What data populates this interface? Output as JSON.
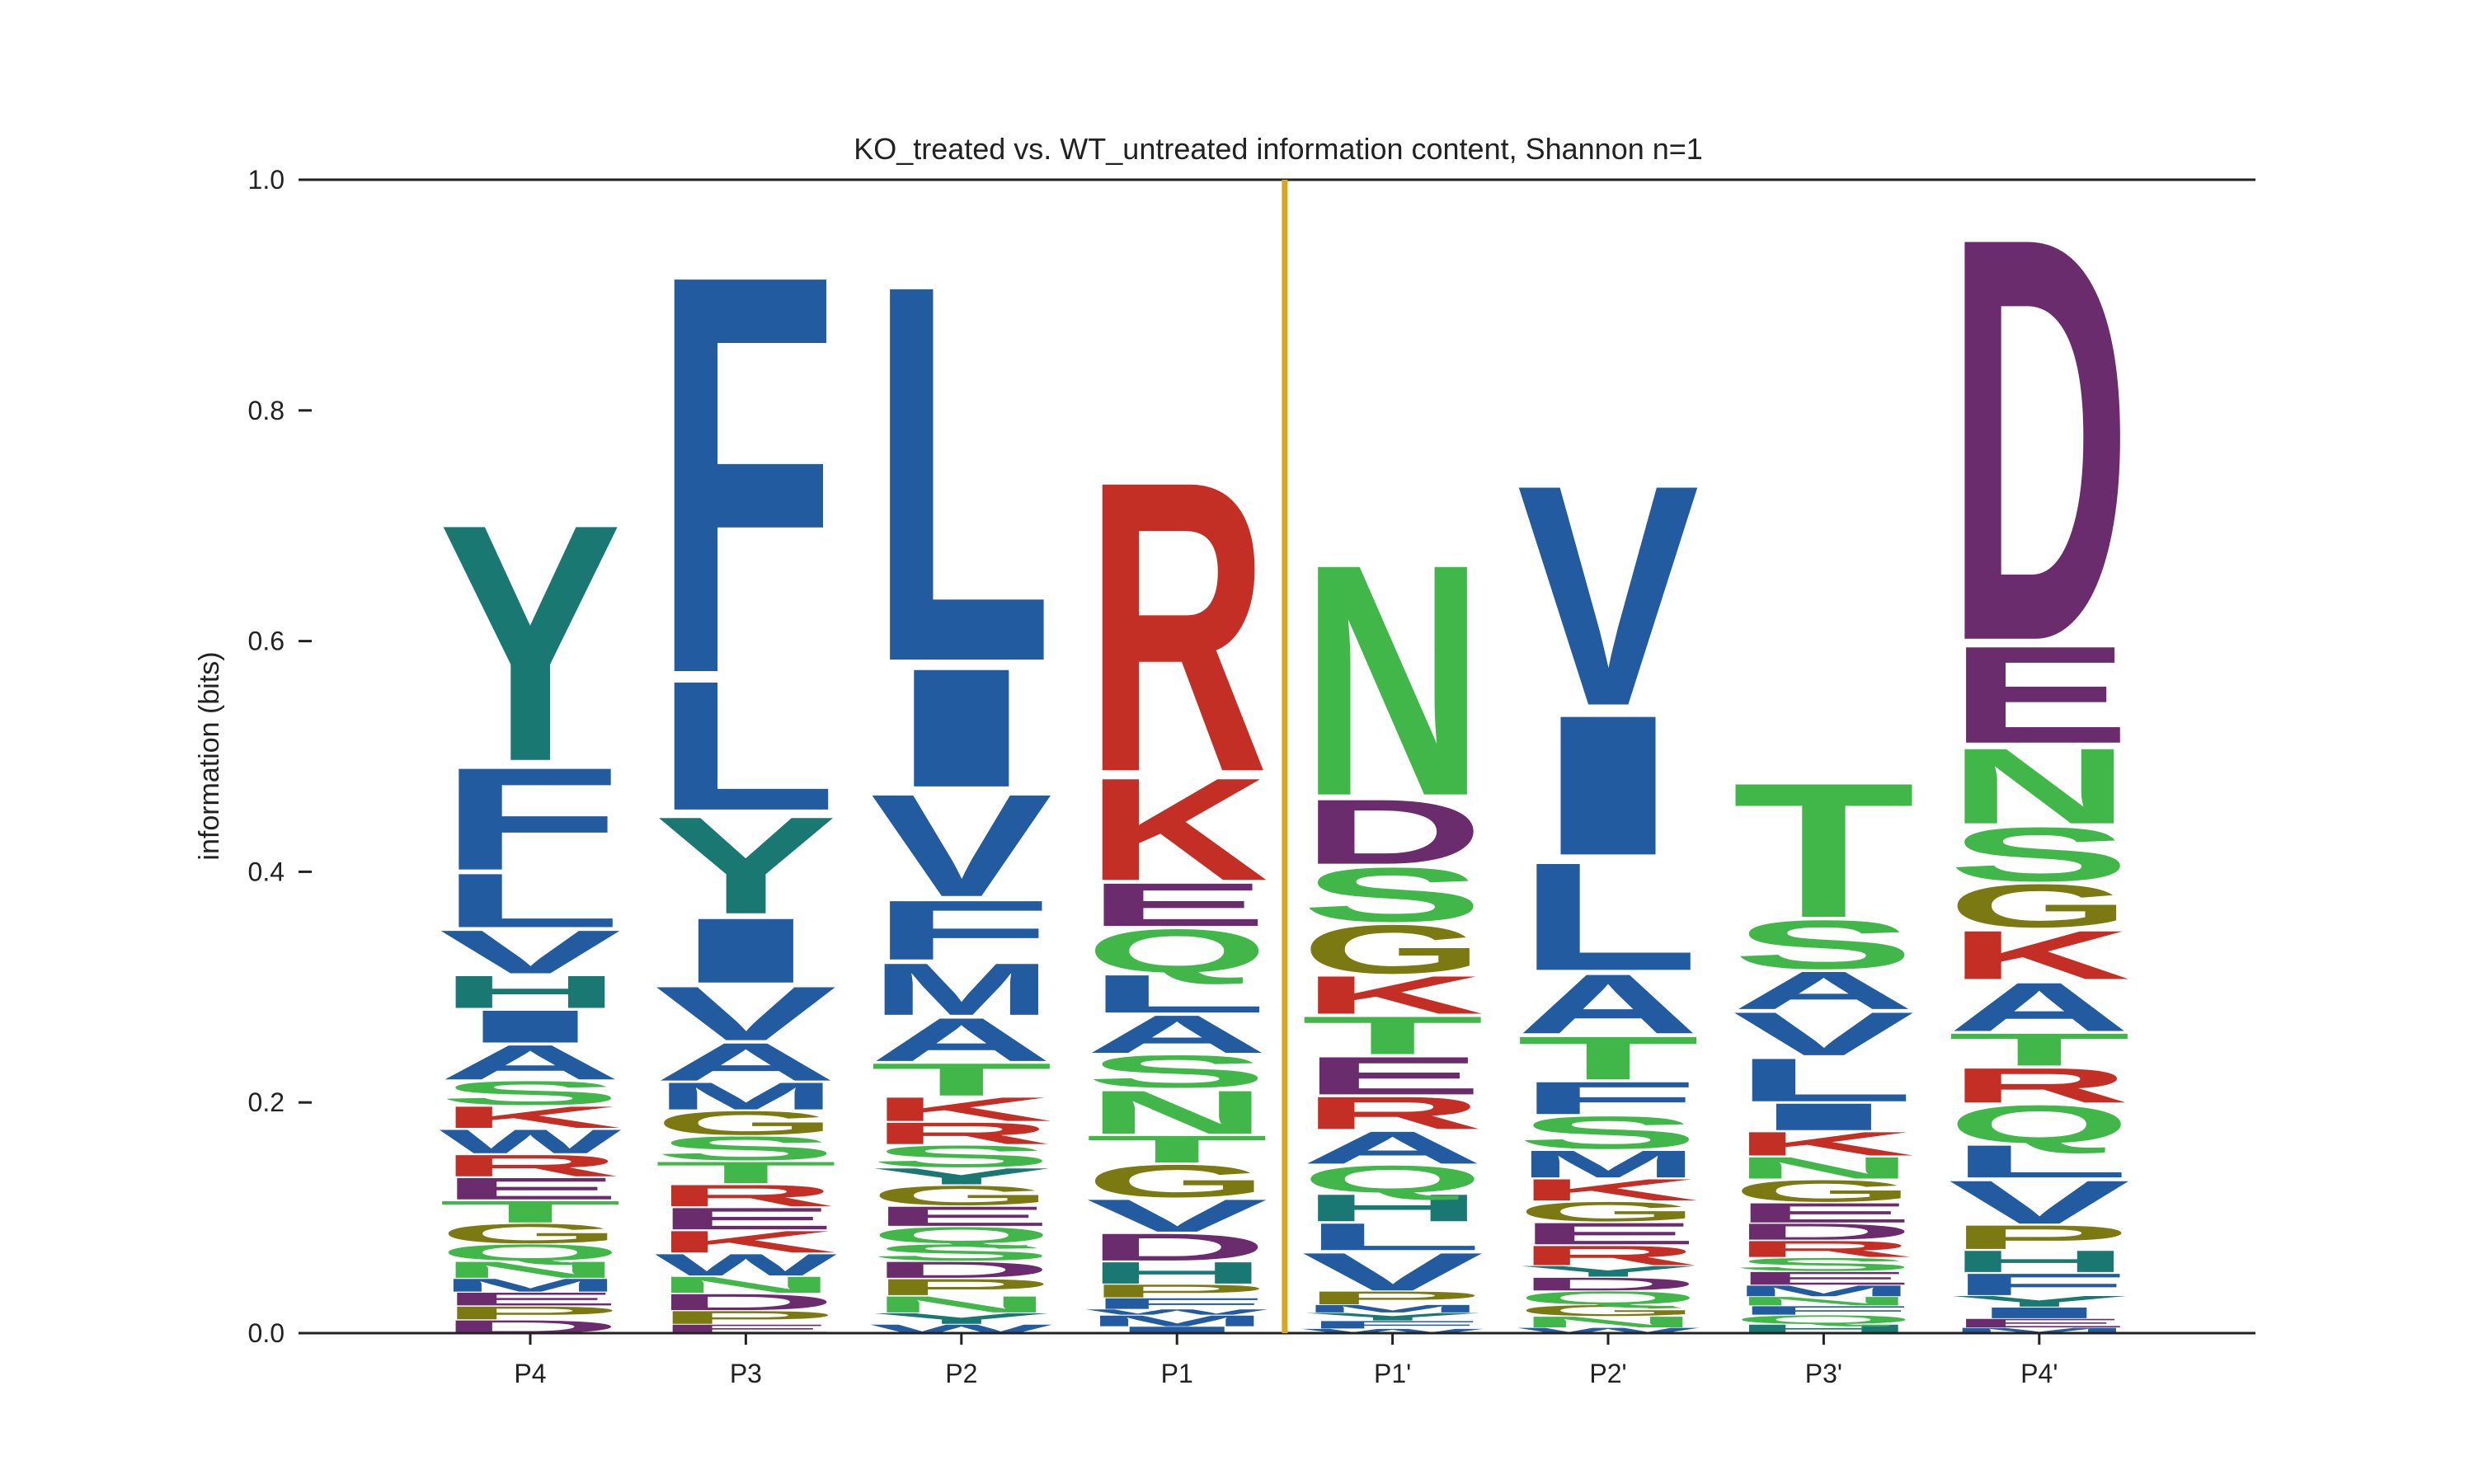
{
  "chart_data": {
    "type": "sequence-logo",
    "title": "KO_treated vs. WT_untreated information content, Shannon n=1",
    "ylabel": "information (bits)",
    "xlabel": "",
    "ylim": [
      0,
      1.0
    ],
    "yticks": [
      "0.0",
      "0.2",
      "0.4",
      "0.6",
      "0.8",
      "1.0"
    ],
    "cleavage_line_after": "P1",
    "cleavage_line_color": "#DAA520",
    "colors": {
      "F": "#235BA0",
      "L": "#235BA0",
      "I": "#235BA0",
      "V": "#235BA0",
      "A": "#235BA0",
      "M": "#235BA0",
      "W": "#235BA0",
      "C": "#235BA0",
      "Y": "#1A7873",
      "H": "#1A7873",
      "R": "#C42F25",
      "K": "#C42F25",
      "D": "#6B2C6D",
      "E": "#6B2C6D",
      "N": "#41B749",
      "S": "#41B749",
      "T": "#41B749",
      "Q": "#41B749",
      "G": "#7B7A12",
      "P": "#7B7A12"
    },
    "positions": [
      {
        "name": "P4",
        "stack": [
          {
            "letter": "D",
            "v": 0.012
          },
          {
            "letter": "P",
            "v": 0.012
          },
          {
            "letter": "E",
            "v": 0.012
          },
          {
            "letter": "M",
            "v": 0.012
          },
          {
            "letter": "N",
            "v": 0.015
          },
          {
            "letter": "Q",
            "v": 0.015
          },
          {
            "letter": "G",
            "v": 0.018
          },
          {
            "letter": "T",
            "v": 0.02
          },
          {
            "letter": "E",
            "v": 0.02
          },
          {
            "letter": "R",
            "v": 0.02
          },
          {
            "letter": "W",
            "v": 0.022
          },
          {
            "letter": "K",
            "v": 0.02
          },
          {
            "letter": "S",
            "v": 0.022
          },
          {
            "letter": "A",
            "v": 0.032
          },
          {
            "letter": "I",
            "v": 0.03
          },
          {
            "letter": "H",
            "v": 0.03
          },
          {
            "letter": "V",
            "v": 0.04
          },
          {
            "letter": "L",
            "v": 0.05
          },
          {
            "letter": "F",
            "v": 0.095
          },
          {
            "letter": "Y",
            "v": 0.22
          }
        ]
      },
      {
        "name": "P3",
        "stack": [
          {
            "letter": "E",
            "v": 0.008
          },
          {
            "letter": "P",
            "v": 0.012
          },
          {
            "letter": "D",
            "v": 0.015
          },
          {
            "letter": "N",
            "v": 0.015
          },
          {
            "letter": "W",
            "v": 0.02
          },
          {
            "letter": "K",
            "v": 0.02
          },
          {
            "letter": "E",
            "v": 0.02
          },
          {
            "letter": "R",
            "v": 0.02
          },
          {
            "letter": "T",
            "v": 0.02
          },
          {
            "letter": "S",
            "v": 0.022
          },
          {
            "letter": "G",
            "v": 0.022
          },
          {
            "letter": "M",
            "v": 0.025
          },
          {
            "letter": "A",
            "v": 0.035
          },
          {
            "letter": "V",
            "v": 0.05
          },
          {
            "letter": "I",
            "v": 0.06
          },
          {
            "letter": "Y",
            "v": 0.09
          },
          {
            "letter": "L",
            "v": 0.12
          },
          {
            "letter": "F",
            "v": 0.37
          }
        ]
      },
      {
        "name": "P2",
        "stack": [
          {
            "letter": "W",
            "v": 0.008
          },
          {
            "letter": "Y",
            "v": 0.01
          },
          {
            "letter": "N",
            "v": 0.015
          },
          {
            "letter": "P",
            "v": 0.015
          },
          {
            "letter": "D",
            "v": 0.015
          },
          {
            "letter": "S",
            "v": 0.015
          },
          {
            "letter": "Q",
            "v": 0.015
          },
          {
            "letter": "E",
            "v": 0.018
          },
          {
            "letter": "G",
            "v": 0.018
          },
          {
            "letter": "Y",
            "v": 0.015
          },
          {
            "letter": "S",
            "v": 0.02
          },
          {
            "letter": "R",
            "v": 0.02
          },
          {
            "letter": "K",
            "v": 0.022
          },
          {
            "letter": "T",
            "v": 0.03
          },
          {
            "letter": "A",
            "v": 0.04
          },
          {
            "letter": "M",
            "v": 0.048
          },
          {
            "letter": "F",
            "v": 0.055
          },
          {
            "letter": "V",
            "v": 0.095
          },
          {
            "letter": "I",
            "v": 0.11
          },
          {
            "letter": "L",
            "v": 0.35
          }
        ]
      },
      {
        "name": "P1",
        "stack": [
          {
            "letter": "I",
            "v": 0.006
          },
          {
            "letter": "M",
            "v": 0.01
          },
          {
            "letter": "W",
            "v": 0.005
          },
          {
            "letter": "F",
            "v": 0.01
          },
          {
            "letter": "P",
            "v": 0.012
          },
          {
            "letter": "H",
            "v": 0.02
          },
          {
            "letter": "D",
            "v": 0.025
          },
          {
            "letter": "V",
            "v": 0.03
          },
          {
            "letter": "G",
            "v": 0.03
          },
          {
            "letter": "T",
            "v": 0.025
          },
          {
            "letter": "N",
            "v": 0.04
          },
          {
            "letter": "S",
            "v": 0.03
          },
          {
            "letter": "A",
            "v": 0.035
          },
          {
            "letter": "L",
            "v": 0.035
          },
          {
            "letter": "Q",
            "v": 0.04
          },
          {
            "letter": "E",
            "v": 0.04
          },
          {
            "letter": "K",
            "v": 0.095
          },
          {
            "letter": "R",
            "v": 0.27
          }
        ]
      },
      {
        "name": "P1'",
        "stack": [
          {
            "letter": "W",
            "v": 0.004
          },
          {
            "letter": "F",
            "v": 0.007
          },
          {
            "letter": "Y",
            "v": 0.007
          },
          {
            "letter": "M",
            "v": 0.007
          },
          {
            "letter": "P",
            "v": 0.012
          },
          {
            "letter": "V",
            "v": 0.035
          },
          {
            "letter": "L",
            "v": 0.025
          },
          {
            "letter": "H",
            "v": 0.025
          },
          {
            "letter": "Q",
            "v": 0.025
          },
          {
            "letter": "A",
            "v": 0.03
          },
          {
            "letter": "R",
            "v": 0.03
          },
          {
            "letter": "E",
            "v": 0.035
          },
          {
            "letter": "T",
            "v": 0.035
          },
          {
            "letter": "K",
            "v": 0.035
          },
          {
            "letter": "G",
            "v": 0.045
          },
          {
            "letter": "S",
            "v": 0.05
          },
          {
            "letter": "D",
            "v": 0.06
          },
          {
            "letter": "N",
            "v": 0.215
          }
        ]
      },
      {
        "name": "P2'",
        "stack": [
          {
            "letter": "W",
            "v": 0.005
          },
          {
            "letter": "N",
            "v": 0.01
          },
          {
            "letter": "G",
            "v": 0.01
          },
          {
            "letter": "Q",
            "v": 0.012
          },
          {
            "letter": "D",
            "v": 0.012
          },
          {
            "letter": "Y",
            "v": 0.01
          },
          {
            "letter": "R",
            "v": 0.018
          },
          {
            "letter": "E",
            "v": 0.02
          },
          {
            "letter": "G",
            "v": 0.018
          },
          {
            "letter": "K",
            "v": 0.02
          },
          {
            "letter": "M",
            "v": 0.025
          },
          {
            "letter": "S",
            "v": 0.03
          },
          {
            "letter": "F",
            "v": 0.03
          },
          {
            "letter": "T",
            "v": 0.04
          },
          {
            "letter": "A",
            "v": 0.055
          },
          {
            "letter": "L",
            "v": 0.1
          },
          {
            "letter": "I",
            "v": 0.13
          },
          {
            "letter": "V",
            "v": 0.205
          }
        ]
      },
      {
        "name": "P3'",
        "stack": [
          {
            "letter": "H",
            "v": 0.008
          },
          {
            "letter": "Q",
            "v": 0.008
          },
          {
            "letter": "F",
            "v": 0.008
          },
          {
            "letter": "N",
            "v": 0.008
          },
          {
            "letter": "M",
            "v": 0.01
          },
          {
            "letter": "E",
            "v": 0.012
          },
          {
            "letter": "S",
            "v": 0.012
          },
          {
            "letter": "R",
            "v": 0.015
          },
          {
            "letter": "D",
            "v": 0.015
          },
          {
            "letter": "E",
            "v": 0.018
          },
          {
            "letter": "G",
            "v": 0.02
          },
          {
            "letter": "N",
            "v": 0.02
          },
          {
            "letter": "K",
            "v": 0.022
          },
          {
            "letter": "I",
            "v": 0.025
          },
          {
            "letter": "L",
            "v": 0.04
          },
          {
            "letter": "V",
            "v": 0.04
          },
          {
            "letter": "A",
            "v": 0.035
          },
          {
            "letter": "S",
            "v": 0.045
          },
          {
            "letter": "T",
            "v": 0.125
          }
        ]
      },
      {
        "name": "P4'",
        "stack": [
          {
            "letter": "M",
            "v": 0.005
          },
          {
            "letter": "E",
            "v": 0.008
          },
          {
            "letter": "I",
            "v": 0.01
          },
          {
            "letter": "Y",
            "v": 0.01
          },
          {
            "letter": "F",
            "v": 0.02
          },
          {
            "letter": "H",
            "v": 0.02
          },
          {
            "letter": "P",
            "v": 0.022
          },
          {
            "letter": "V",
            "v": 0.04
          },
          {
            "letter": "L",
            "v": 0.03
          },
          {
            "letter": "Q",
            "v": 0.035
          },
          {
            "letter": "R",
            "v": 0.032
          },
          {
            "letter": "T",
            "v": 0.03
          },
          {
            "letter": "A",
            "v": 0.045
          },
          {
            "letter": "K",
            "v": 0.045
          },
          {
            "letter": "G",
            "v": 0.04
          },
          {
            "letter": "S",
            "v": 0.05
          },
          {
            "letter": "N",
            "v": 0.07
          },
          {
            "letter": "E",
            "v": 0.09
          },
          {
            "letter": "D",
            "v": 0.375
          }
        ]
      }
    ]
  }
}
